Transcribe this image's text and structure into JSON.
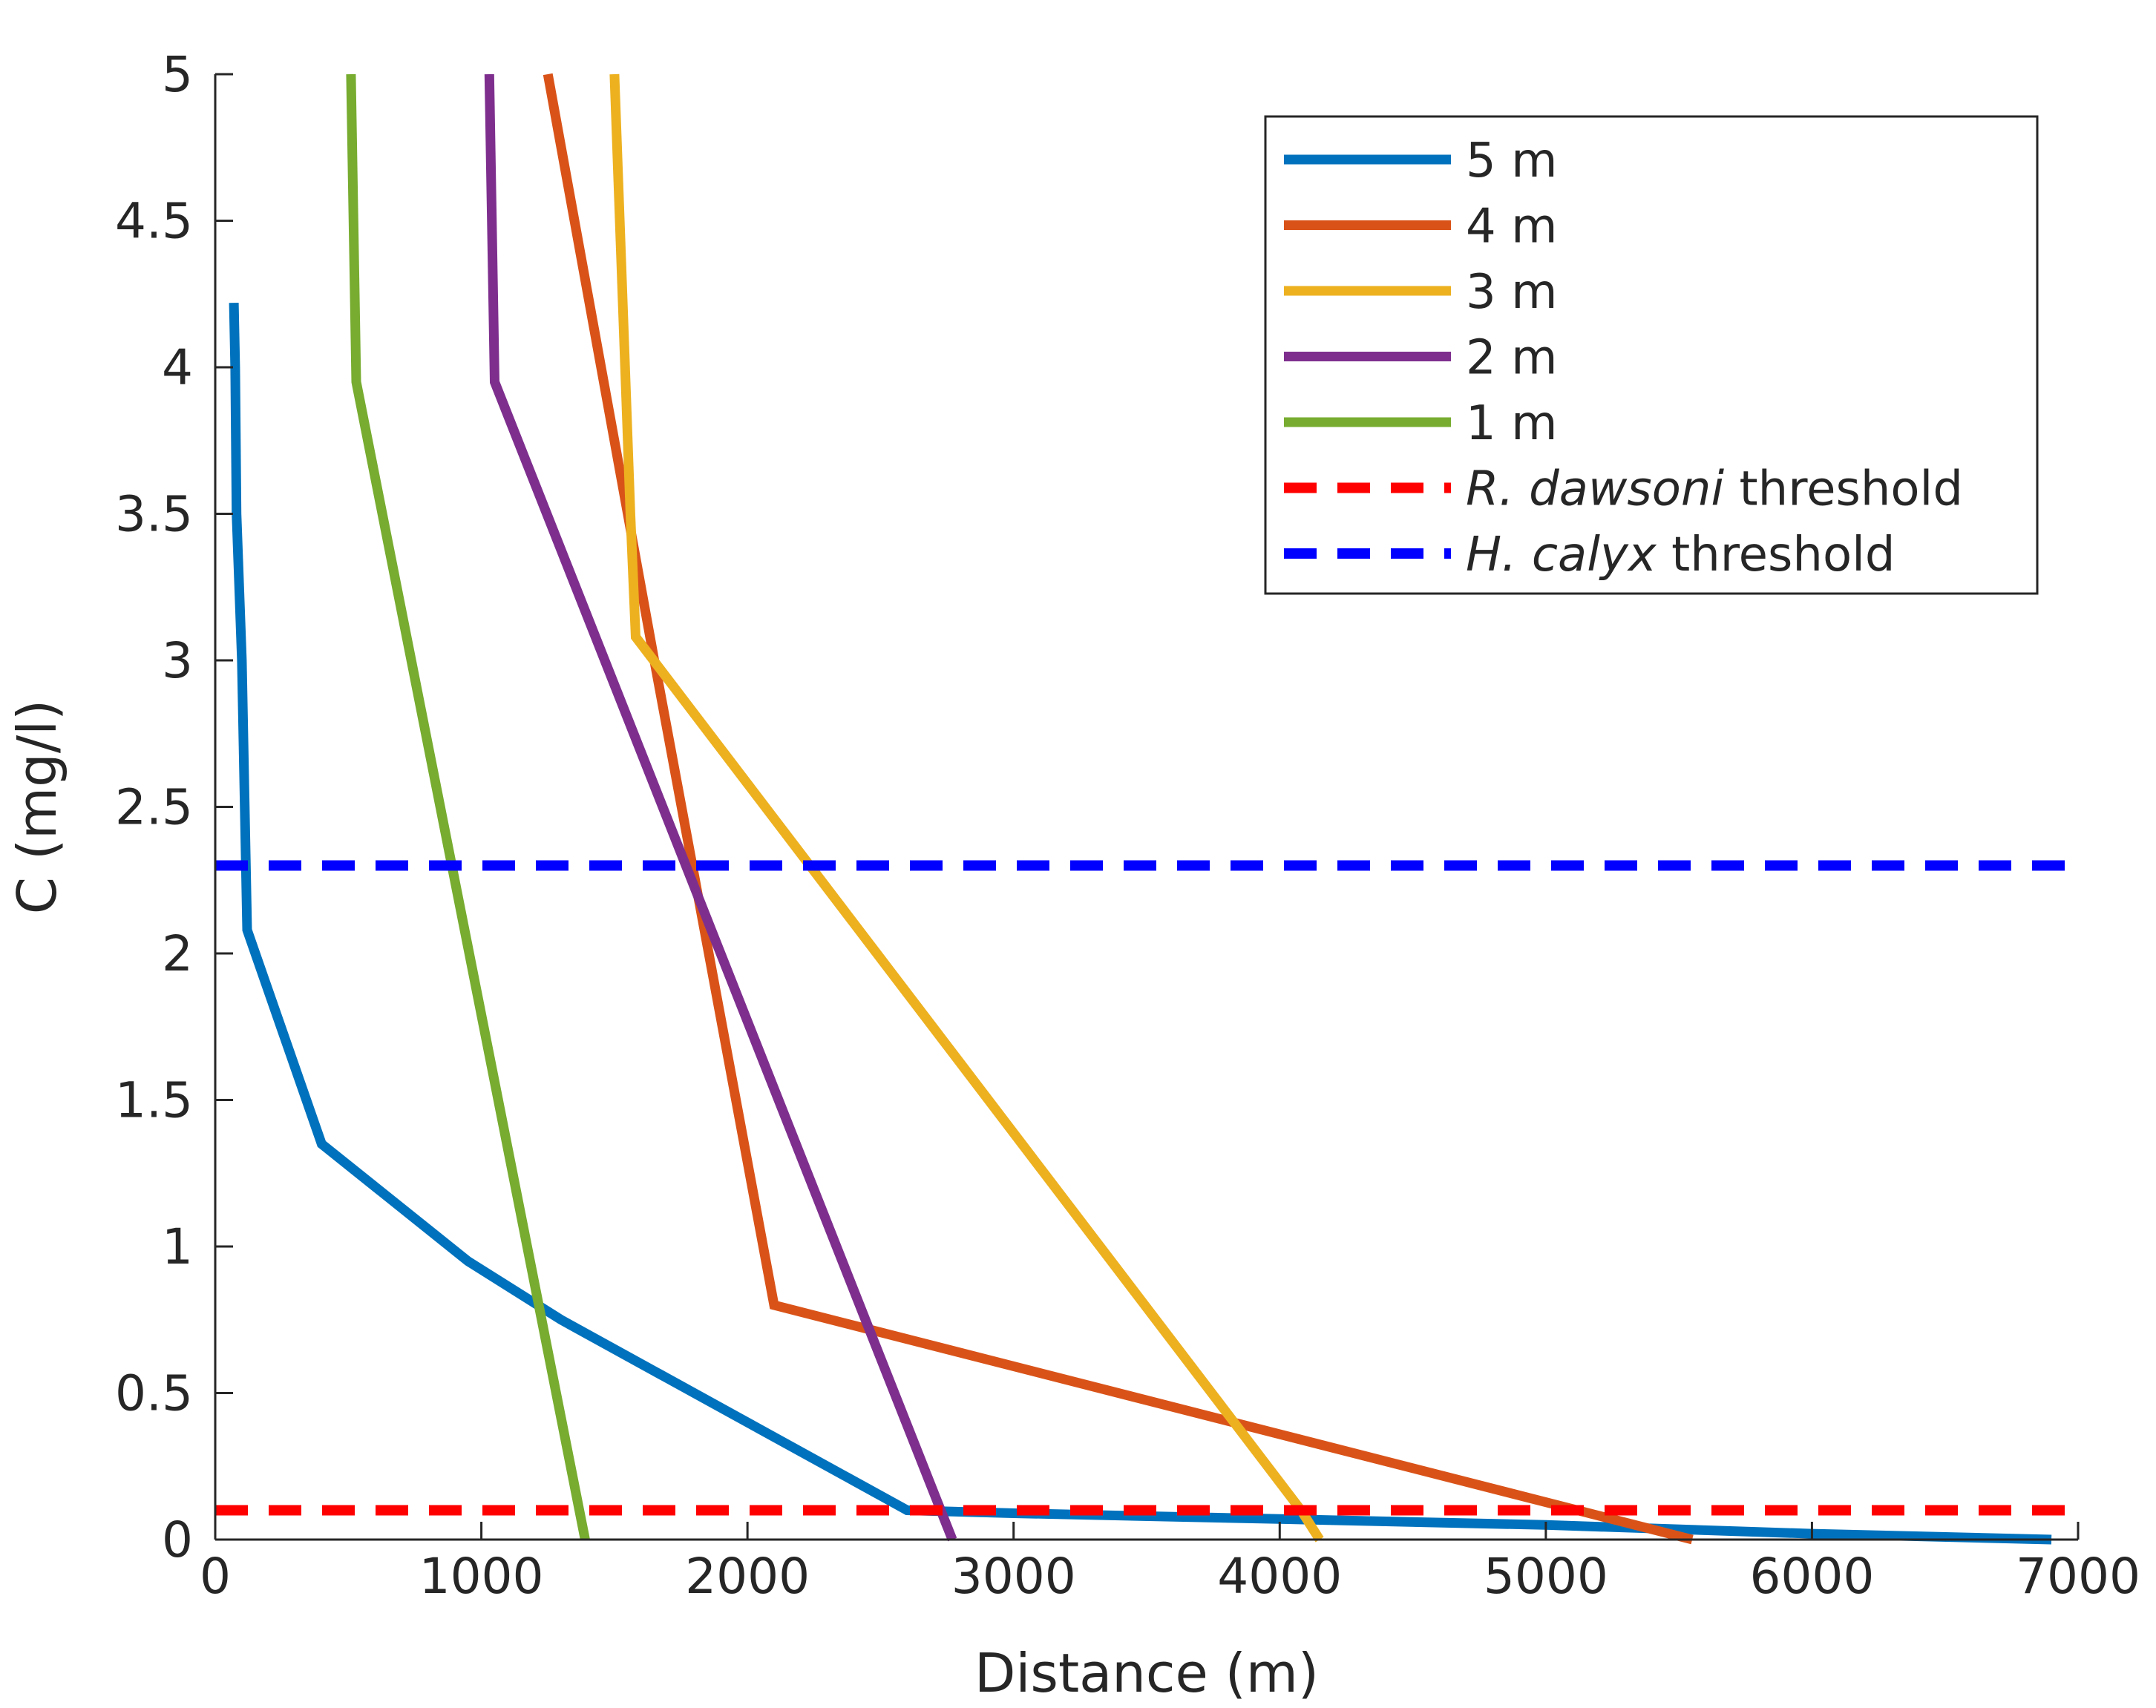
{
  "chart_data": {
    "type": "line",
    "title": "",
    "xlabel": "Distance (m)",
    "ylabel": "C (mg/l)",
    "xlim": [
      0,
      7000
    ],
    "ylim": [
      0,
      5
    ],
    "xticks": [
      0,
      1000,
      2000,
      3000,
      4000,
      5000,
      6000,
      7000
    ],
    "yticks": [
      0,
      0.5,
      1,
      1.5,
      2,
      2.5,
      3,
      3.5,
      4,
      4.5,
      5
    ],
    "xtick_labels": [
      "0",
      "1000",
      "2000",
      "3000",
      "4000",
      "5000",
      "6000",
      "7000"
    ],
    "ytick_labels": [
      "0",
      "0.5",
      "1",
      "1.5",
      "2",
      "2.5",
      "3",
      "3.5",
      "4",
      "4.5",
      "5"
    ],
    "grid": false,
    "legend_position": "top-right",
    "series": [
      {
        "name": "5 m",
        "color": "#0072BD",
        "dash": "solid",
        "x": [
          70,
          75,
          80,
          100,
          120,
          400,
          950,
          1300,
          2600,
          3000,
          4000,
          5000,
          6000,
          6900
        ],
        "y": [
          4.22,
          4.0,
          3.5,
          3.0,
          2.08,
          1.35,
          0.95,
          0.75,
          0.1,
          0.09,
          0.07,
          0.05,
          0.02,
          0.0
        ]
      },
      {
        "name": "4 m",
        "color": "#D95319",
        "dash": "solid",
        "x": [
          1250,
          1650,
          2100,
          5550
        ],
        "y": [
          5.0,
          3.0,
          0.8,
          0.0
        ]
      },
      {
        "name": "3 m",
        "color": "#EDB120",
        "dash": "solid",
        "x": [
          1500,
          1560,
          1580,
          4080,
          4150
        ],
        "y": [
          5.0,
          3.5,
          3.08,
          0.1,
          0.0
        ]
      },
      {
        "name": "2 m",
        "color": "#7E2F8E",
        "dash": "solid",
        "x": [
          1030,
          1050,
          2770
        ],
        "y": [
          5.0,
          3.95,
          0.0
        ]
      },
      {
        "name": "1 m",
        "color": "#77AC30",
        "dash": "solid",
        "x": [
          510,
          530,
          1390
        ],
        "y": [
          5.0,
          3.95,
          0.0
        ]
      },
      {
        "name": "threshold",
        "legend_prefix": "R. dawsoni",
        "color": "#FF0000",
        "dash": "dashed",
        "x": [
          0,
          7000
        ],
        "y": [
          0.1,
          0.1
        ]
      },
      {
        "name": "threshold",
        "legend_prefix": "H. calyx",
        "color": "#0000FF",
        "dash": "dashed",
        "x": [
          0,
          7000
        ],
        "y": [
          2.3,
          2.3
        ]
      }
    ]
  }
}
